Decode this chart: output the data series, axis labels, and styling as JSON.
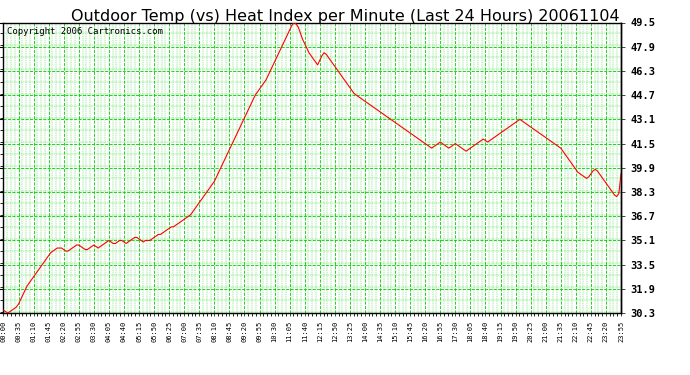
{
  "title": "Outdoor Temp (vs) Heat Index per Minute (Last 24 Hours) 20061104",
  "copyright": "Copyright 2006 Cartronics.com",
  "bg_color": "#ffffff",
  "line_color": "#ff0000",
  "grid_color": "#00cc00",
  "title_fontsize": 11.5,
  "copyright_fontsize": 6.5,
  "yticks": [
    30.3,
    31.9,
    33.5,
    35.1,
    36.7,
    38.3,
    39.9,
    41.5,
    43.1,
    44.7,
    46.3,
    47.9,
    49.5
  ],
  "ymin": 30.3,
  "ymax": 49.5,
  "xmin": 0,
  "xmax": 1435,
  "curve_points": [
    [
      0,
      30.5
    ],
    [
      5,
      30.4
    ],
    [
      10,
      30.3
    ],
    [
      15,
      30.4
    ],
    [
      20,
      30.5
    ],
    [
      25,
      30.6
    ],
    [
      30,
      30.7
    ],
    [
      35,
      30.9
    ],
    [
      40,
      31.2
    ],
    [
      45,
      31.5
    ],
    [
      50,
      31.8
    ],
    [
      55,
      32.1
    ],
    [
      60,
      32.3
    ],
    [
      65,
      32.5
    ],
    [
      70,
      32.7
    ],
    [
      75,
      32.9
    ],
    [
      80,
      33.1
    ],
    [
      85,
      33.3
    ],
    [
      90,
      33.5
    ],
    [
      95,
      33.7
    ],
    [
      100,
      33.9
    ],
    [
      105,
      34.1
    ],
    [
      110,
      34.3
    ],
    [
      115,
      34.4
    ],
    [
      120,
      34.5
    ],
    [
      125,
      34.6
    ],
    [
      130,
      34.6
    ],
    [
      135,
      34.6
    ],
    [
      140,
      34.5
    ],
    [
      145,
      34.4
    ],
    [
      150,
      34.4
    ],
    [
      155,
      34.5
    ],
    [
      160,
      34.6
    ],
    [
      165,
      34.7
    ],
    [
      170,
      34.8
    ],
    [
      175,
      34.8
    ],
    [
      180,
      34.7
    ],
    [
      185,
      34.6
    ],
    [
      190,
      34.5
    ],
    [
      195,
      34.5
    ],
    [
      200,
      34.6
    ],
    [
      205,
      34.7
    ],
    [
      210,
      34.8
    ],
    [
      215,
      34.7
    ],
    [
      220,
      34.6
    ],
    [
      225,
      34.7
    ],
    [
      230,
      34.8
    ],
    [
      235,
      34.9
    ],
    [
      240,
      35.0
    ],
    [
      245,
      35.1
    ],
    [
      250,
      35.0
    ],
    [
      255,
      34.9
    ],
    [
      260,
      34.9
    ],
    [
      265,
      35.0
    ],
    [
      270,
      35.1
    ],
    [
      275,
      35.1
    ],
    [
      280,
      35.0
    ],
    [
      285,
      34.9
    ],
    [
      290,
      35.0
    ],
    [
      295,
      35.1
    ],
    [
      300,
      35.2
    ],
    [
      305,
      35.3
    ],
    [
      310,
      35.3
    ],
    [
      315,
      35.2
    ],
    [
      320,
      35.1
    ],
    [
      325,
      35.0
    ],
    [
      330,
      35.1
    ],
    [
      335,
      35.1
    ],
    [
      340,
      35.1
    ],
    [
      345,
      35.2
    ],
    [
      350,
      35.3
    ],
    [
      355,
      35.4
    ],
    [
      360,
      35.5
    ],
    [
      365,
      35.5
    ],
    [
      370,
      35.6
    ],
    [
      375,
      35.7
    ],
    [
      380,
      35.8
    ],
    [
      385,
      35.9
    ],
    [
      390,
      36.0
    ],
    [
      395,
      36.0
    ],
    [
      400,
      36.1
    ],
    [
      405,
      36.2
    ],
    [
      410,
      36.3
    ],
    [
      415,
      36.4
    ],
    [
      420,
      36.5
    ],
    [
      425,
      36.6
    ],
    [
      430,
      36.7
    ],
    [
      435,
      36.8
    ],
    [
      440,
      37.0
    ],
    [
      445,
      37.2
    ],
    [
      450,
      37.4
    ],
    [
      455,
      37.6
    ],
    [
      460,
      37.8
    ],
    [
      465,
      38.0
    ],
    [
      470,
      38.2
    ],
    [
      475,
      38.4
    ],
    [
      480,
      38.6
    ],
    [
      485,
      38.8
    ],
    [
      490,
      39.0
    ],
    [
      495,
      39.3
    ],
    [
      500,
      39.6
    ],
    [
      505,
      39.9
    ],
    [
      510,
      40.2
    ],
    [
      515,
      40.5
    ],
    [
      520,
      40.8
    ],
    [
      525,
      41.1
    ],
    [
      530,
      41.4
    ],
    [
      535,
      41.7
    ],
    [
      540,
      42.0
    ],
    [
      545,
      42.3
    ],
    [
      550,
      42.6
    ],
    [
      555,
      42.9
    ],
    [
      560,
      43.2
    ],
    [
      565,
      43.5
    ],
    [
      570,
      43.8
    ],
    [
      575,
      44.1
    ],
    [
      580,
      44.4
    ],
    [
      585,
      44.7
    ],
    [
      590,
      44.9
    ],
    [
      595,
      45.1
    ],
    [
      600,
      45.3
    ],
    [
      605,
      45.5
    ],
    [
      610,
      45.7
    ],
    [
      615,
      46.0
    ],
    [
      620,
      46.3
    ],
    [
      625,
      46.6
    ],
    [
      630,
      46.9
    ],
    [
      635,
      47.2
    ],
    [
      640,
      47.5
    ],
    [
      645,
      47.8
    ],
    [
      650,
      48.1
    ],
    [
      655,
      48.4
    ],
    [
      660,
      48.7
    ],
    [
      665,
      49.0
    ],
    [
      670,
      49.3
    ],
    [
      675,
      49.5
    ],
    [
      680,
      49.4
    ],
    [
      685,
      49.2
    ],
    [
      690,
      48.8
    ],
    [
      695,
      48.4
    ],
    [
      700,
      48.1
    ],
    [
      705,
      47.8
    ],
    [
      710,
      47.5
    ],
    [
      715,
      47.3
    ],
    [
      720,
      47.1
    ],
    [
      725,
      46.9
    ],
    [
      730,
      46.7
    ],
    [
      735,
      47.0
    ],
    [
      740,
      47.3
    ],
    [
      745,
      47.5
    ],
    [
      750,
      47.4
    ],
    [
      755,
      47.2
    ],
    [
      760,
      47.0
    ],
    [
      765,
      46.8
    ],
    [
      770,
      46.6
    ],
    [
      775,
      46.4
    ],
    [
      780,
      46.2
    ],
    [
      785,
      46.0
    ],
    [
      790,
      45.8
    ],
    [
      795,
      45.6
    ],
    [
      800,
      45.4
    ],
    [
      805,
      45.2
    ],
    [
      810,
      45.0
    ],
    [
      815,
      44.8
    ],
    [
      820,
      44.7
    ],
    [
      825,
      44.6
    ],
    [
      830,
      44.5
    ],
    [
      835,
      44.4
    ],
    [
      840,
      44.3
    ],
    [
      845,
      44.2
    ],
    [
      850,
      44.1
    ],
    [
      855,
      44.0
    ],
    [
      860,
      43.9
    ],
    [
      865,
      43.8
    ],
    [
      870,
      43.7
    ],
    [
      875,
      43.6
    ],
    [
      880,
      43.5
    ],
    [
      885,
      43.4
    ],
    [
      890,
      43.3
    ],
    [
      895,
      43.2
    ],
    [
      900,
      43.1
    ],
    [
      905,
      43.0
    ],
    [
      910,
      42.9
    ],
    [
      915,
      42.8
    ],
    [
      920,
      42.7
    ],
    [
      925,
      42.6
    ],
    [
      930,
      42.5
    ],
    [
      935,
      42.4
    ],
    [
      940,
      42.3
    ],
    [
      945,
      42.2
    ],
    [
      950,
      42.1
    ],
    [
      955,
      42.0
    ],
    [
      960,
      41.9
    ],
    [
      965,
      41.8
    ],
    [
      970,
      41.7
    ],
    [
      975,
      41.6
    ],
    [
      980,
      41.5
    ],
    [
      985,
      41.4
    ],
    [
      990,
      41.3
    ],
    [
      995,
      41.2
    ],
    [
      1000,
      41.3
    ],
    [
      1005,
      41.4
    ],
    [
      1010,
      41.5
    ],
    [
      1015,
      41.6
    ],
    [
      1020,
      41.5
    ],
    [
      1025,
      41.4
    ],
    [
      1030,
      41.3
    ],
    [
      1035,
      41.2
    ],
    [
      1040,
      41.3
    ],
    [
      1045,
      41.4
    ],
    [
      1050,
      41.5
    ],
    [
      1055,
      41.4
    ],
    [
      1060,
      41.3
    ],
    [
      1065,
      41.2
    ],
    [
      1070,
      41.1
    ],
    [
      1075,
      41.0
    ],
    [
      1080,
      41.1
    ],
    [
      1085,
      41.2
    ],
    [
      1090,
      41.3
    ],
    [
      1095,
      41.4
    ],
    [
      1100,
      41.5
    ],
    [
      1105,
      41.6
    ],
    [
      1110,
      41.7
    ],
    [
      1115,
      41.8
    ],
    [
      1120,
      41.7
    ],
    [
      1125,
      41.6
    ],
    [
      1130,
      41.7
    ],
    [
      1135,
      41.8
    ],
    [
      1140,
      41.9
    ],
    [
      1145,
      42.0
    ],
    [
      1150,
      42.1
    ],
    [
      1155,
      42.2
    ],
    [
      1160,
      42.3
    ],
    [
      1165,
      42.4
    ],
    [
      1170,
      42.5
    ],
    [
      1175,
      42.6
    ],
    [
      1180,
      42.7
    ],
    [
      1185,
      42.8
    ],
    [
      1190,
      42.9
    ],
    [
      1195,
      43.0
    ],
    [
      1200,
      43.1
    ],
    [
      1205,
      43.0
    ],
    [
      1210,
      42.9
    ],
    [
      1215,
      42.8
    ],
    [
      1220,
      42.7
    ],
    [
      1225,
      42.6
    ],
    [
      1230,
      42.5
    ],
    [
      1235,
      42.4
    ],
    [
      1240,
      42.3
    ],
    [
      1245,
      42.2
    ],
    [
      1250,
      42.1
    ],
    [
      1255,
      42.0
    ],
    [
      1260,
      41.9
    ],
    [
      1265,
      41.8
    ],
    [
      1270,
      41.7
    ],
    [
      1275,
      41.6
    ],
    [
      1280,
      41.5
    ],
    [
      1285,
      41.4
    ],
    [
      1290,
      41.3
    ],
    [
      1295,
      41.2
    ],
    [
      1300,
      41.0
    ],
    [
      1305,
      40.8
    ],
    [
      1310,
      40.6
    ],
    [
      1315,
      40.4
    ],
    [
      1320,
      40.2
    ],
    [
      1325,
      40.0
    ],
    [
      1330,
      39.8
    ],
    [
      1335,
      39.6
    ],
    [
      1340,
      39.5
    ],
    [
      1345,
      39.4
    ],
    [
      1350,
      39.3
    ],
    [
      1355,
      39.2
    ],
    [
      1360,
      39.3
    ],
    [
      1365,
      39.5
    ],
    [
      1370,
      39.7
    ],
    [
      1375,
      39.8
    ],
    [
      1380,
      39.7
    ],
    [
      1385,
      39.5
    ],
    [
      1390,
      39.3
    ],
    [
      1395,
      39.1
    ],
    [
      1400,
      38.9
    ],
    [
      1405,
      38.7
    ],
    [
      1410,
      38.5
    ],
    [
      1415,
      38.3
    ],
    [
      1420,
      38.1
    ],
    [
      1425,
      38.0
    ],
    [
      1430,
      38.2
    ],
    [
      1435,
      39.5
    ]
  ]
}
